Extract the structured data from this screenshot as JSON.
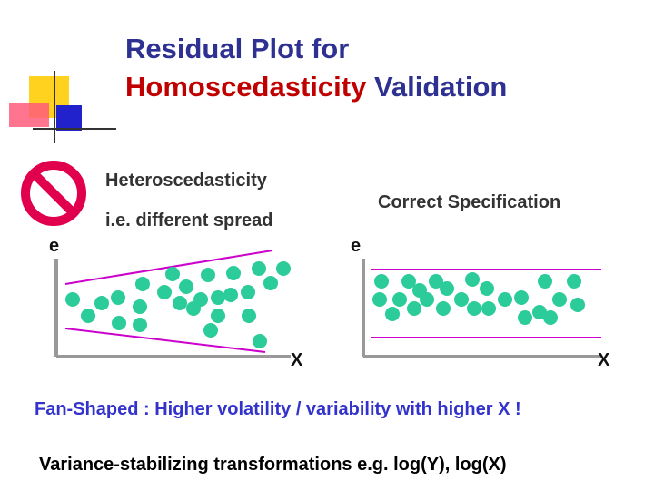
{
  "slide": {
    "title": {
      "line1": "Residual Plot for",
      "line2_accent": "Homoscedasticity",
      "line2_rest": " Validation"
    },
    "left_panel": {
      "heading": "Heteroscedasticity",
      "subheading": "i.e. different spread",
      "y_axis_label": "e",
      "x_axis_label": "X",
      "icon": "prohibition-sign-icon"
    },
    "right_panel": {
      "heading": "Correct Specification",
      "y_axis_label": "e",
      "x_axis_label": "X"
    },
    "fan_caption": "Fan-Shaped : Higher volatility / variability with higher X !",
    "transform_caption": "Variance-stabilizing transformations e.g. log(Y), log(X)",
    "colors": {
      "title": "#2e3192",
      "title_accent": "#c00000",
      "dot": "#2bcc99",
      "band_line": "#cc00cc",
      "axis": "#999999",
      "prohibition": "#e0004d",
      "fan_caption": "#3333cc"
    }
  }
}
